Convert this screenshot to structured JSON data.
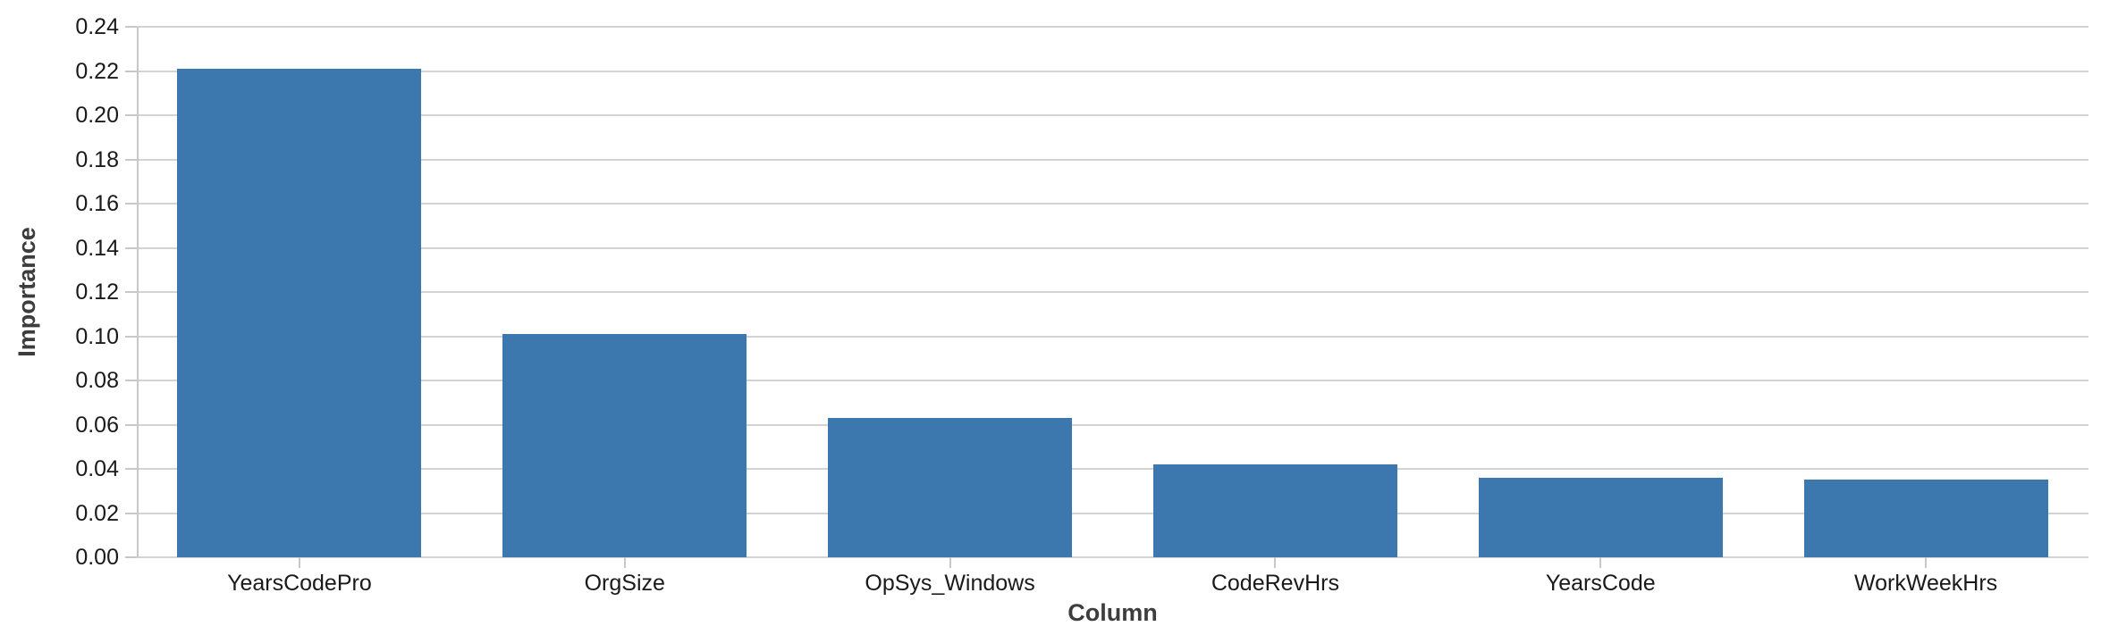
{
  "chart_data": {
    "type": "bar",
    "title": "",
    "categories": [
      "YearsCodePro",
      "OrgSize",
      "OpSys_Windows",
      "CodeRevHrs",
      "YearsCode",
      "WorkWeekHrs"
    ],
    "values": [
      0.221,
      0.101,
      0.063,
      0.042,
      0.036,
      0.035
    ],
    "xlabel": "Column",
    "ylabel": "Importance",
    "ylim": [
      0,
      0.24
    ],
    "ytick_step": 0.02,
    "ytick_labels": [
      "0.00",
      "0.02",
      "0.04",
      "0.06",
      "0.08",
      "0.10",
      "0.12",
      "0.14",
      "0.16",
      "0.18",
      "0.20",
      "0.22",
      "0.24"
    ],
    "grid": true,
    "legend": false,
    "colors": {
      "bar": "#3C77AD",
      "gridline": "#d3d3d3",
      "axis": "#c8c8c8",
      "tick_label": "#1a1a1a",
      "axis_title": "#3d3d3d",
      "background": "#ffffff"
    }
  }
}
